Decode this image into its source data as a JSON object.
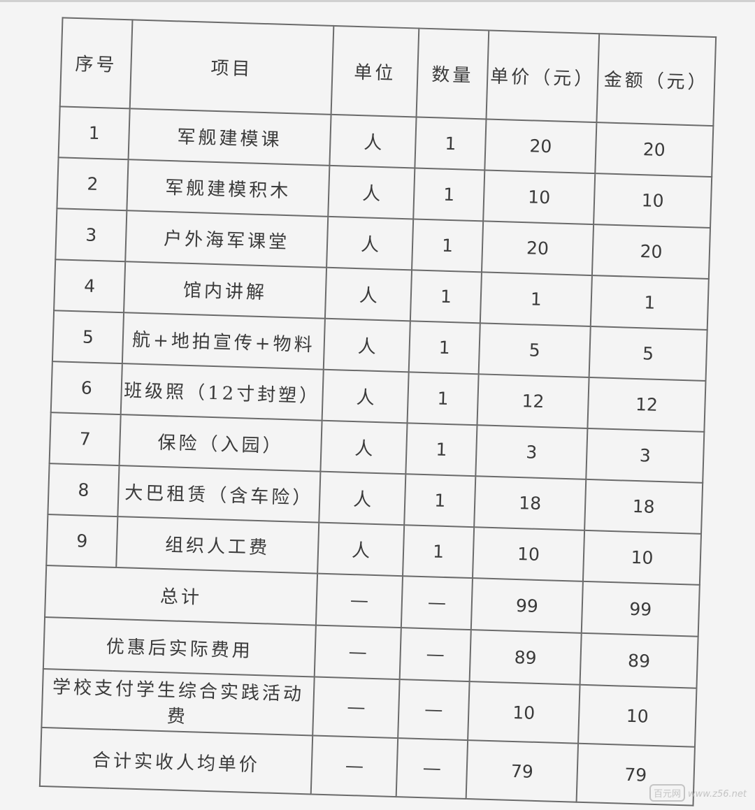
{
  "table": {
    "headers": [
      "序号",
      "项目",
      "单位",
      "数量",
      "单价（元）",
      "金额（元）"
    ],
    "rows": [
      {
        "no": "1",
        "item": "军舰建模课",
        "unit": "人",
        "qty": "1",
        "price": "20",
        "amount": "20"
      },
      {
        "no": "2",
        "item": "军舰建模积木",
        "unit": "人",
        "qty": "1",
        "price": "10",
        "amount": "10"
      },
      {
        "no": "3",
        "item": "户外海军课堂",
        "unit": "人",
        "qty": "1",
        "price": "20",
        "amount": "20"
      },
      {
        "no": "4",
        "item": "馆内讲解",
        "unit": "人",
        "qty": "1",
        "price": "1",
        "amount": "1"
      },
      {
        "no": "5",
        "item": "航+地拍宣传+物料",
        "unit": "人",
        "qty": "1",
        "price": "5",
        "amount": "5"
      },
      {
        "no": "6",
        "item": "班级照（12寸封塑）",
        "unit": "人",
        "qty": "1",
        "price": "12",
        "amount": "12"
      },
      {
        "no": "7",
        "item": "保险（入园）",
        "unit": "人",
        "qty": "1",
        "price": "3",
        "amount": "3"
      },
      {
        "no": "8",
        "item": "大巴租赁（含车险）",
        "unit": "人",
        "qty": "1",
        "price": "18",
        "amount": "18"
      },
      {
        "no": "9",
        "item": "组织人工费",
        "unit": "人",
        "qty": "1",
        "price": "10",
        "amount": "10"
      }
    ],
    "summary": [
      {
        "label": "总计",
        "unit": "—",
        "qty": "—",
        "price": "99",
        "amount": "99"
      },
      {
        "label": "优惠后实际费用",
        "unit": "—",
        "qty": "—",
        "price": "89",
        "amount": "89"
      },
      {
        "label": "学校支付学生综合实践活动费",
        "unit": "—",
        "qty": "—",
        "price": "10",
        "amount": "10"
      },
      {
        "label": "合计实收人均单价",
        "unit": "—",
        "qty": "—",
        "price": "79",
        "amount": "79"
      }
    ]
  },
  "watermark": {
    "logo": "百元网",
    "site": "www.z56.net"
  }
}
